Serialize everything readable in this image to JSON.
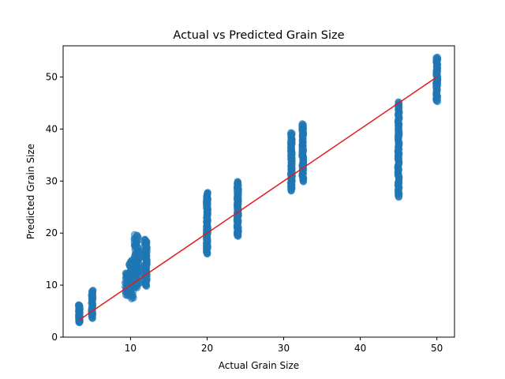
{
  "chart_data": {
    "type": "scatter",
    "title": "Actual vs Predicted Grain Size",
    "xlabel": "Actual Grain Size",
    "ylabel": "Predicted Grain Size",
    "xlim": [
      1.2,
      52.3
    ],
    "ylim": [
      0,
      56
    ],
    "xticks": [
      10,
      20,
      30,
      40,
      50
    ],
    "yticks": [
      0,
      10,
      20,
      30,
      40,
      50
    ],
    "grid": false,
    "legend": "none",
    "colors": {
      "points": "#1f77b4",
      "reference_line": "#e41a1c",
      "axes": "#000000"
    },
    "point_alpha": 0.55,
    "reference_line": {
      "x": [
        3.3,
        50
      ],
      "y": [
        3.3,
        50
      ]
    },
    "clusters": [
      {
        "x": 3.3,
        "x_spread": 0.1,
        "y_min": 2.8,
        "y_max": 6.2,
        "count": 50
      },
      {
        "x": 5.0,
        "x_spread": 0.1,
        "y_min": 3.6,
        "y_max": 9.0,
        "count": 45
      },
      {
        "x": 9.6,
        "x_spread": 0.3,
        "y_min": 8.0,
        "y_max": 12.3,
        "count": 50
      },
      {
        "x": 10.1,
        "x_spread": 0.3,
        "y_min": 7.4,
        "y_max": 14.8,
        "count": 55
      },
      {
        "x": 10.8,
        "x_spread": 0.35,
        "y_min": 9.5,
        "y_max": 19.7,
        "count": 80
      },
      {
        "x": 12.0,
        "x_spread": 0.15,
        "y_min": 9.8,
        "y_max": 18.8,
        "count": 80
      },
      {
        "x": 20.0,
        "x_spread": 0.1,
        "y_min": 16.0,
        "y_max": 27.8,
        "count": 110
      },
      {
        "x": 24.0,
        "x_spread": 0.1,
        "y_min": 19.4,
        "y_max": 29.9,
        "count": 100
      },
      {
        "x": 31.0,
        "x_spread": 0.1,
        "y_min": 28.1,
        "y_max": 39.3,
        "count": 90
      },
      {
        "x": 32.5,
        "x_spread": 0.1,
        "y_min": 29.9,
        "y_max": 41.0,
        "count": 90
      },
      {
        "x": 45.0,
        "x_spread": 0.1,
        "y_min": 26.9,
        "y_max": 45.2,
        "count": 110
      },
      {
        "x": 50.0,
        "x_spread": 0.1,
        "y_min": 45.3,
        "y_max": 53.8,
        "count": 80
      }
    ]
  }
}
